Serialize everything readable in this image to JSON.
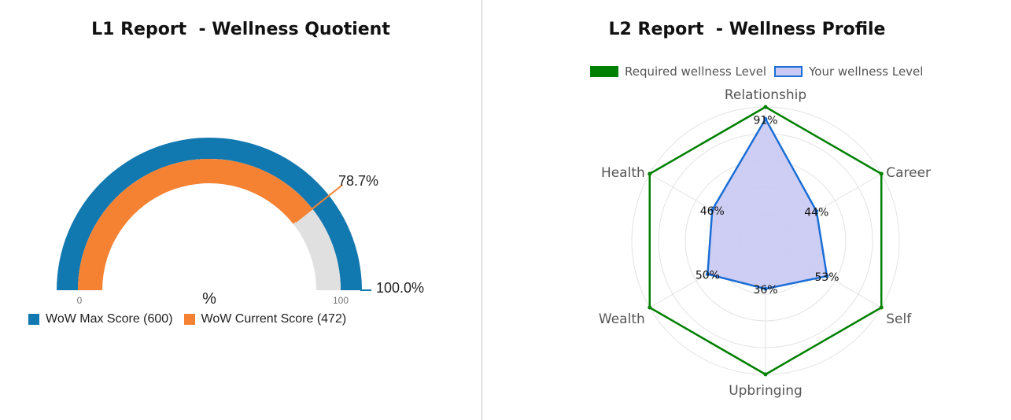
{
  "left": {
    "title": "L1 Report  - Wellness Quotient",
    "unit_label": "%",
    "min_label": "0",
    "max_label": "100",
    "current_label": "78.7%",
    "max_value_label": "100.0%",
    "legend": [
      {
        "label": "WoW Max Score (600)",
        "color": "#1278b0"
      },
      {
        "label": "WoW Current Score (472)",
        "color": "#f58232"
      }
    ]
  },
  "right": {
    "title": "L2 Report  - Wellness Profile",
    "legend": [
      {
        "label": "Required wellness Level",
        "color": "#008000"
      },
      {
        "label": "Your wellness Level",
        "color": "#1a6ed6"
      }
    ]
  },
  "chart_data": [
    {
      "type": "gauge",
      "title": "L1 Report  - Wellness Quotient",
      "unit": "%",
      "min": 0,
      "max": 100,
      "series": [
        {
          "name": "WoW Max Score (600)",
          "value": 100.0,
          "color": "#1278b0"
        },
        {
          "name": "WoW Current Score (472)",
          "value": 78.7,
          "color": "#f58232"
        }
      ],
      "track_color": "#e0e0e0"
    },
    {
      "type": "radar",
      "title": "L2 Report  - Wellness Profile",
      "axes": [
        "Relationship",
        "Career",
        "Self",
        "Upbringing",
        "Wealth",
        "Health"
      ],
      "range": [
        0,
        100
      ],
      "series": [
        {
          "name": "Required wellness Level",
          "values": [
            100,
            100,
            100,
            100,
            100,
            100
          ],
          "color": "#008000",
          "filled": false
        },
        {
          "name": "Your wellness Level",
          "values": [
            91,
            44,
            53,
            36,
            50,
            46
          ],
          "labels": [
            "91%",
            "44%",
            "53%",
            "36%",
            "50%",
            "46%"
          ],
          "color": "#1a6ed6",
          "fill": "#c9c9f3",
          "filled": true
        }
      ],
      "grid": true
    }
  ]
}
